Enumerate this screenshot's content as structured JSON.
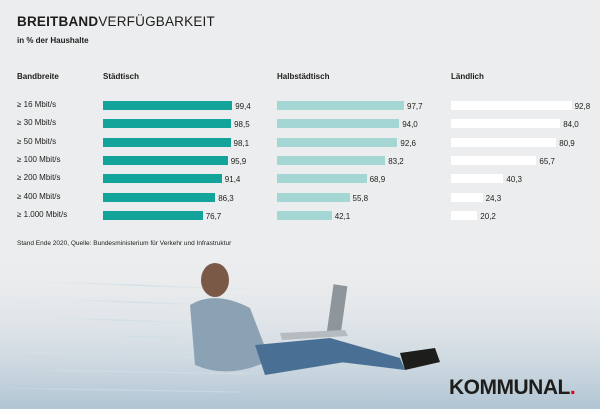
{
  "title_bold": "BREITBAND",
  "title_light": "VERFÜGBARKEIT",
  "subtitle": "in % der Haushalte",
  "row_header": "Bandbreite",
  "source": "Stand Ende 2020, Quelle: Bundesministerium für Verkehr und Infrastruktur",
  "logo_text": "KOMMUNAL",
  "logo_dot": ".",
  "colors": {
    "staedtisch": "#12a39b",
    "halbstaedtisch": "#a4d6d4",
    "laendlich": "#ffffff"
  },
  "chart_data": {
    "type": "bar",
    "categories": [
      "≥ 16 Mbit/s",
      "≥ 30 Mbit/s",
      "≥ 50 Mbit/s",
      "≥ 100 Mbit/s",
      "≥ 200 Mbit/s",
      "≥ 400 Mbit/s",
      "≥ 1.000 Mbit/s"
    ],
    "series": [
      {
        "name": "Städtisch",
        "values": [
          99.4,
          98.5,
          98.1,
          95.9,
          91.4,
          86.3,
          76.7
        ],
        "labels": [
          "99,4",
          "98,5",
          "98,1",
          "95,9",
          "91,4",
          "86,3",
          "76,7"
        ]
      },
      {
        "name": "Halbstädtisch",
        "values": [
          97.7,
          94.0,
          92.6,
          83.2,
          68.9,
          55.8,
          42.1
        ],
        "labels": [
          "97,7",
          "94,0",
          "92,6",
          "83,2",
          "68,9",
          "55,8",
          "42,1"
        ]
      },
      {
        "name": "Ländlich",
        "values": [
          92.8,
          84.0,
          80.9,
          65.7,
          40.3,
          24.3,
          20.2
        ],
        "labels": [
          "92,8",
          "84,0",
          "80,9",
          "65,7",
          "40,3",
          "24,3",
          "20,2"
        ]
      }
    ],
    "title": "BREITBANDVERFÜGBARKEIT",
    "ylabel": "in % der Haushalte",
    "xlim": [
      0,
      100
    ],
    "orientation": "horizontal",
    "grid": false,
    "legend": "column headers"
  }
}
